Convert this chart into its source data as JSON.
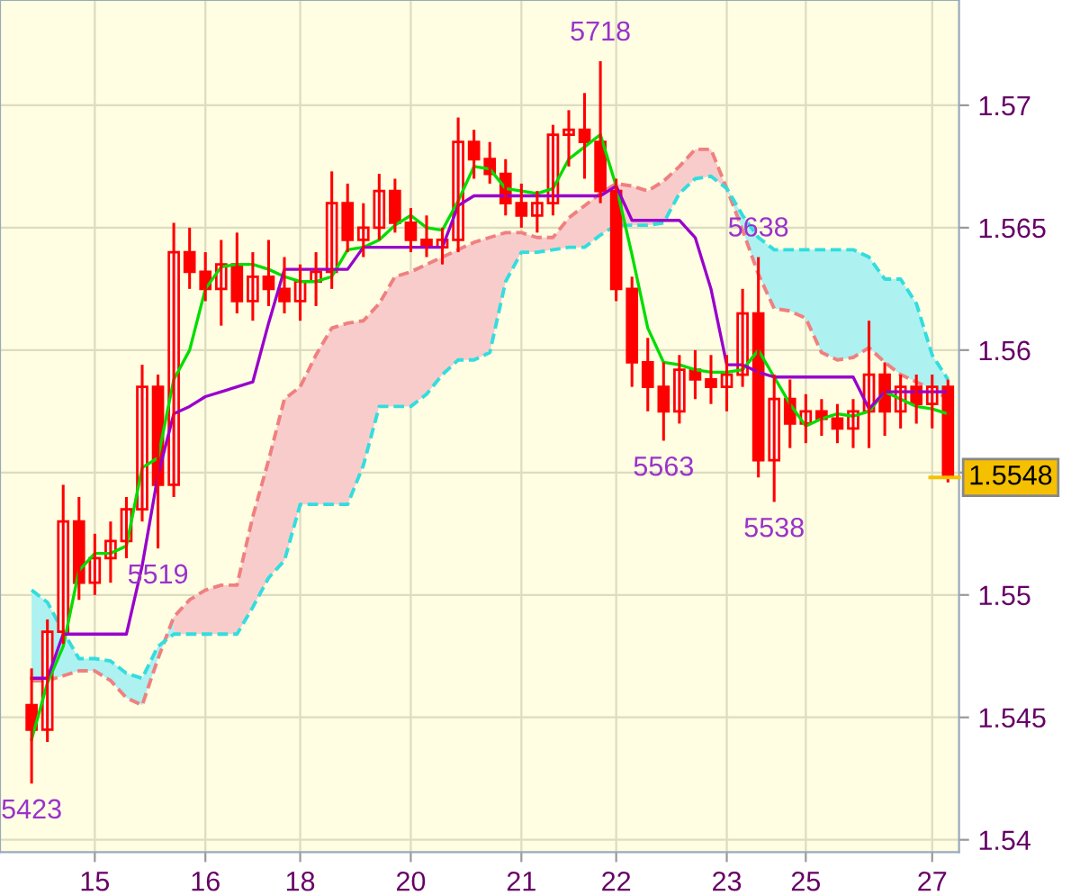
{
  "chart_data": {
    "type": "candlestick",
    "categories": [
      null,
      null,
      null,
      null,
      "15",
      null,
      null,
      null,
      null,
      null,
      null,
      "16",
      null,
      null,
      null,
      null,
      null,
      "18",
      null,
      null,
      null,
      null,
      null,
      null,
      "20",
      null,
      null,
      null,
      null,
      null,
      null,
      "21",
      null,
      null,
      null,
      null,
      null,
      "22",
      null,
      null,
      null,
      null,
      null,
      null,
      "23",
      null,
      null,
      null,
      null,
      "25",
      null,
      null,
      null,
      null,
      null,
      null,
      null,
      "27",
      null
    ],
    "ohlc": [
      [
        1.5455,
        1.547,
        1.5423,
        1.5445
      ],
      [
        1.5445,
        1.549,
        1.544,
        1.5485
      ],
      [
        1.5485,
        1.5545,
        1.548,
        1.553
      ],
      [
        1.553,
        1.554,
        1.5498,
        1.5505
      ],
      [
        1.5505,
        1.5525,
        1.55,
        1.5515
      ],
      [
        1.5515,
        1.553,
        1.5505,
        1.5522
      ],
      [
        1.5522,
        1.554,
        1.5515,
        1.5535
      ],
      [
        1.5535,
        1.5594,
        1.553,
        1.5585
      ],
      [
        1.5585,
        1.559,
        1.5519,
        1.5545
      ],
      [
        1.5545,
        1.5652,
        1.554,
        1.564
      ],
      [
        1.564,
        1.565,
        1.5625,
        1.5632
      ],
      [
        1.5632,
        1.564,
        1.562,
        1.5625
      ],
      [
        1.5625,
        1.5645,
        1.561,
        1.5635
      ],
      [
        1.5635,
        1.5648,
        1.5615,
        1.562
      ],
      [
        1.562,
        1.564,
        1.5612,
        1.563
      ],
      [
        1.563,
        1.5645,
        1.5618,
        1.5625
      ],
      [
        1.5625,
        1.5638,
        1.5615,
        1.562
      ],
      [
        1.562,
        1.5635,
        1.5612,
        1.5628
      ],
      [
        1.5628,
        1.564,
        1.5618,
        1.5632
      ],
      [
        1.5632,
        1.5673,
        1.5625,
        1.566
      ],
      [
        1.566,
        1.5668,
        1.564,
        1.5645
      ],
      [
        1.5645,
        1.566,
        1.5638,
        1.565
      ],
      [
        1.565,
        1.5672,
        1.5645,
        1.5665
      ],
      [
        1.5665,
        1.567,
        1.5648,
        1.5652
      ],
      [
        1.5652,
        1.5658,
        1.564,
        1.5645
      ],
      [
        1.5645,
        1.5655,
        1.5638,
        1.5642
      ],
      [
        1.5642,
        1.565,
        1.5635,
        1.5645
      ],
      [
        1.5645,
        1.5695,
        1.564,
        1.5685
      ],
      [
        1.5685,
        1.569,
        1.567,
        1.5678
      ],
      [
        1.5678,
        1.5685,
        1.5668,
        1.5672
      ],
      [
        1.5672,
        1.5678,
        1.5655,
        1.566
      ],
      [
        1.566,
        1.5668,
        1.565,
        1.5655
      ],
      [
        1.5655,
        1.5665,
        1.5648,
        1.566
      ],
      [
        1.566,
        1.5692,
        1.5655,
        1.5688
      ],
      [
        1.5688,
        1.5698,
        1.5675,
        1.569
      ],
      [
        1.569,
        1.5705,
        1.567,
        1.5685
      ],
      [
        1.5685,
        1.5718,
        1.566,
        1.5665
      ],
      [
        1.5665,
        1.567,
        1.562,
        1.5625
      ],
      [
        1.5625,
        1.563,
        1.5585,
        1.5595
      ],
      [
        1.5595,
        1.5605,
        1.5575,
        1.5585
      ],
      [
        1.5585,
        1.5595,
        1.5563,
        1.5575
      ],
      [
        1.5575,
        1.5598,
        1.557,
        1.5592
      ],
      [
        1.5592,
        1.56,
        1.558,
        1.5588
      ],
      [
        1.5588,
        1.5598,
        1.5578,
        1.5585
      ],
      [
        1.5585,
        1.5598,
        1.5575,
        1.559
      ],
      [
        1.559,
        1.5625,
        1.5585,
        1.5615
      ],
      [
        1.5615,
        1.5638,
        1.5548,
        1.5555
      ],
      [
        1.5555,
        1.559,
        1.5538,
        1.558
      ],
      [
        1.558,
        1.5588,
        1.556,
        1.557
      ],
      [
        1.557,
        1.5582,
        1.5562,
        1.5575
      ],
      [
        1.5575,
        1.558,
        1.5565,
        1.5572
      ],
      [
        1.5572,
        1.5578,
        1.5562,
        1.5568
      ],
      [
        1.5568,
        1.558,
        1.556,
        1.5575
      ],
      [
        1.5575,
        1.5612,
        1.556,
        1.559
      ],
      [
        1.559,
        1.5595,
        1.5565,
        1.5575
      ],
      [
        1.5575,
        1.559,
        1.5568,
        1.5585
      ],
      [
        1.5585,
        1.559,
        1.557,
        1.5578
      ],
      [
        1.5578,
        1.559,
        1.5568,
        1.5585
      ],
      [
        1.5585,
        1.5588,
        1.5546,
        1.5548
      ]
    ],
    "color": "#ff0000",
    "series": [
      {
        "type": "line",
        "color": "#f08080",
        "line_style": "dashed",
        "lower": [
          null,
          null,
          null,
          null,
          null,
          null,
          null,
          null,
          1.5479,
          1.5484,
          1.5484,
          1.5484,
          1.5484,
          1.5484,
          1.5495,
          1.5507,
          1.5514,
          1.5537,
          1.5537,
          1.5537,
          1.5537,
          1.5553,
          1.5577,
          1.5577,
          1.5577,
          1.5582,
          1.559,
          1.5596,
          1.5596,
          1.5599,
          1.5628,
          1.564,
          1.564,
          1.5641,
          1.5642,
          1.5642,
          1.5647,
          1.5651,
          1.5651,
          1.5651,
          1.5652,
          1.5664,
          1.567,
          1.5671,
          1.5666,
          1.5655,
          null,
          null,
          null,
          null,
          null,
          null,
          null,
          null,
          null,
          null,
          null,
          null,
          null
        ],
        "upper": [
          null,
          null,
          null,
          null,
          null,
          null,
          null,
          null,
          1.5474,
          1.5491,
          1.5498,
          1.5502,
          1.5504,
          1.5504,
          1.5532,
          1.5555,
          1.558,
          1.5585,
          1.5598,
          1.5609,
          1.5611,
          1.5612,
          1.5619,
          1.563,
          1.5632,
          1.5635,
          1.5638,
          1.5641,
          1.5644,
          1.5646,
          1.5648,
          1.5648,
          1.5646,
          1.5646,
          1.5654,
          1.5659,
          1.5664,
          1.5668,
          1.5667,
          1.5665,
          1.5669,
          1.5675,
          1.5682,
          1.5682,
          1.5666,
          1.5649,
          null,
          null,
          null,
          null,
          null,
          null,
          null,
          null,
          null,
          null,
          null,
          null,
          null
        ],
        "values": [
          1.5465,
          1.5465,
          1.5467,
          1.5469,
          1.5469,
          1.5465,
          1.5458,
          1.5455,
          1.5474,
          1.5491,
          1.5498,
          1.5502,
          1.5504,
          1.5504,
          1.5532,
          1.5555,
          1.558,
          1.5585,
          1.5598,
          1.5609,
          1.5611,
          1.5612,
          1.5619,
          1.563,
          1.5632,
          1.5635,
          1.5638,
          1.5641,
          1.5644,
          1.5646,
          1.5648,
          1.5648,
          1.5646,
          1.5646,
          1.5654,
          1.5659,
          1.5664,
          1.5668,
          1.5667,
          1.5665,
          1.5669,
          1.5675,
          1.5682,
          1.5682,
          1.5666,
          1.5649,
          1.5631,
          1.5617,
          1.5616,
          1.5613,
          1.5599,
          1.5596,
          1.5597,
          1.5601,
          1.5595,
          1.559,
          1.5587,
          1.5584,
          1.558
        ]
      },
      {
        "type": "line",
        "color": "#33dddd",
        "line_style": "dashed",
        "lower": [
          1.5465,
          1.5465,
          1.5467,
          1.5469,
          1.5469,
          1.5465,
          1.5458,
          1.5455,
          1.5474,
          1.5491,
          null,
          null,
          null,
          null,
          null,
          null,
          null,
          null,
          null,
          null,
          null,
          null,
          null,
          null,
          null,
          null,
          null,
          null,
          null,
          null,
          null,
          null,
          null,
          null,
          null,
          null,
          null,
          null,
          null,
          null,
          null,
          null,
          null,
          null,
          1.5666,
          1.5649,
          1.5631,
          1.5617,
          1.5616,
          1.5613,
          1.5599,
          1.5596,
          1.5597,
          1.5601,
          1.5595,
          1.559,
          1.5587,
          1.5584,
          1.558
        ],
        "upper": [
          1.5502,
          1.5497,
          1.5485,
          1.5474,
          1.5474,
          1.5473,
          1.5468,
          1.5466,
          1.5479,
          1.5484,
          null,
          null,
          null,
          null,
          null,
          null,
          null,
          null,
          null,
          null,
          null,
          null,
          null,
          null,
          null,
          null,
          null,
          null,
          null,
          null,
          null,
          null,
          null,
          null,
          null,
          null,
          null,
          null,
          null,
          null,
          null,
          null,
          null,
          null,
          1.5666,
          1.5655,
          1.5646,
          1.5641,
          1.5641,
          1.5641,
          1.5641,
          1.5641,
          1.5641,
          1.5638,
          1.5629,
          1.5629,
          1.5619,
          1.5598,
          1.5588
        ],
        "values": [
          1.5502,
          1.5497,
          1.5485,
          1.5474,
          1.5474,
          1.5473,
          1.5468,
          1.5466,
          1.5479,
          1.5484,
          1.5484,
          1.5484,
          1.5484,
          1.5484,
          1.5495,
          1.5507,
          1.5514,
          1.5537,
          1.5537,
          1.5537,
          1.5537,
          1.5553,
          1.5577,
          1.5577,
          1.5577,
          1.5582,
          1.559,
          1.5596,
          1.5596,
          1.5599,
          1.5628,
          1.564,
          1.564,
          1.5641,
          1.5642,
          1.5642,
          1.5647,
          1.5651,
          1.5651,
          1.5651,
          1.5652,
          1.5664,
          1.567,
          1.5671,
          1.5666,
          1.5655,
          1.5646,
          1.5641,
          1.5641,
          1.5641,
          1.5641,
          1.5641,
          1.5641,
          1.5638,
          1.5629,
          1.5629,
          1.5619,
          1.5598,
          1.5588
        ]
      },
      {
        "type": "line",
        "color": "#00dd00",
        "line_style": "solid",
        "values": [
          1.5441,
          1.5464,
          1.5479,
          1.551,
          1.5517,
          1.5517,
          1.552,
          1.5552,
          1.5556,
          1.5588,
          1.56,
          1.5625,
          1.5634,
          1.5635,
          1.5635,
          1.5633,
          1.563,
          1.5628,
          1.5628,
          1.563,
          1.5641,
          1.5642,
          1.5645,
          1.5651,
          1.5655,
          1.565,
          1.5649,
          1.5661,
          1.5675,
          1.5674,
          1.5666,
          1.5665,
          1.5664,
          1.5666,
          1.5678,
          1.5683,
          1.5688,
          1.5667,
          1.5639,
          1.5609,
          1.5595,
          1.5594,
          1.5592,
          1.5591,
          1.5591,
          1.5592,
          1.56,
          1.5589,
          1.5578,
          1.5569,
          1.5572,
          1.5574,
          1.5573,
          1.5575,
          1.5583,
          1.558,
          1.5577,
          1.5576,
          1.5574
        ]
      },
      {
        "type": "line",
        "color": "#9900cc",
        "line_style": "solid",
        "values": [
          1.5466,
          1.5466,
          1.5484,
          1.5484,
          1.5484,
          1.5484,
          1.5484,
          1.5512,
          1.5549,
          1.5574,
          1.5577,
          1.5581,
          1.5583,
          1.5585,
          1.5587,
          1.5611,
          1.5633,
          1.5633,
          1.5633,
          1.5633,
          1.5633,
          1.5642,
          1.5642,
          1.5642,
          1.5642,
          1.5642,
          1.5642,
          1.5659,
          1.5663,
          1.5663,
          1.5663,
          1.5663,
          1.5663,
          1.5663,
          1.5663,
          1.5663,
          1.5663,
          1.5667,
          1.5653,
          1.5653,
          1.5653,
          1.5653,
          1.5646,
          1.5625,
          1.5594,
          1.5594,
          1.5591,
          1.5589,
          1.5589,
          1.5589,
          1.5589,
          1.5589,
          1.5589,
          1.5576,
          1.5583,
          1.5583,
          1.5583,
          1.5583,
          1.5583
        ]
      }
    ],
    "ylim": [
      1.5395,
      1.5743
    ],
    "yticks": [
      1.54,
      1.545,
      1.55,
      {
        "value": 1.555,
        "label": null
      },
      1.56,
      1.565,
      1.57
    ],
    "grid": true,
    "legend": false,
    "ref_lines": [
      {
        "axis": "y",
        "value": 1.5548,
        "label": "1.5548",
        "color": "#f5c000"
      }
    ],
    "annotations": [
      {
        "text": "5423",
        "y": 1.5423
      },
      {
        "text": "5519",
        "y": 1.5519
      },
      {
        "text": "5718",
        "y": 1.5718
      },
      {
        "text": "5563",
        "y": 1.5563
      },
      {
        "text": "5638",
        "y": 1.5638
      },
      {
        "text": "5538",
        "y": 1.5538
      }
    ]
  }
}
